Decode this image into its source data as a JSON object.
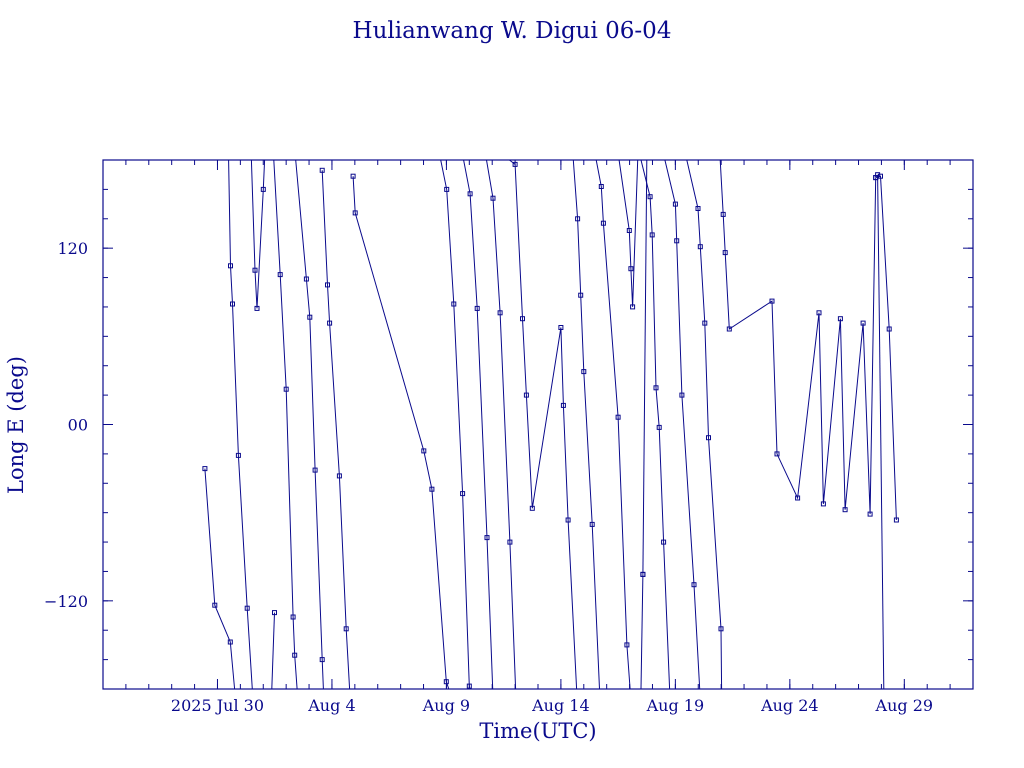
{
  "chart_data": {
    "type": "line",
    "title": "Hulianwang W. Digui 06-04",
    "xlabel": "Time(UTC)",
    "ylabel": "Long E (deg)",
    "ylim": [
      -180,
      180
    ],
    "xlim": [
      "2025-07-25T00:00",
      "2025-09-01T00:00"
    ],
    "grid": false,
    "legend": "none",
    "color": "#0a0a8c",
    "xticks": [
      {
        "label": "2025 Jul 30",
        "at": "2025-07-30"
      },
      {
        "label": "Aug  4",
        "at": "2025-08-04"
      },
      {
        "label": "Aug  9",
        "at": "2025-08-09"
      },
      {
        "label": "Aug 14",
        "at": "2025-08-14"
      },
      {
        "label": "Aug 19",
        "at": "2025-08-19"
      },
      {
        "label": "Aug 24",
        "at": "2025-08-24"
      },
      {
        "label": "Aug 29",
        "at": "2025-08-29"
      }
    ],
    "yticks": [
      {
        "label": "−120",
        "value": -120
      },
      {
        "label": "00",
        "value": 0
      },
      {
        "label": "120",
        "value": 120
      }
    ],
    "series": [
      {
        "points": [
          [
            "2025-07-29T10:51",
            -30
          ],
          [
            "2025-07-29T21:12",
            -123
          ],
          [
            "2025-07-30T13:25",
            -148
          ],
          [
            "2025-07-30T18:00",
            -180
          ]
        ]
      },
      {
        "points": [
          [
            "2025-07-30T11:42",
            180
          ],
          [
            "2025-07-30T13:42",
            108
          ],
          [
            "2025-07-30T15:43",
            82
          ],
          [
            "2025-07-30T21:54",
            -21
          ],
          [
            "2025-07-31T07:08",
            -125
          ],
          [
            "2025-07-31T12:30",
            -180
          ]
        ]
      },
      {
        "points": [
          [
            "2025-07-31T11:31",
            180
          ],
          [
            "2025-07-31T15:23",
            105
          ],
          [
            "2025-07-31T17:24",
            79
          ],
          [
            "2025-08-01T00:00",
            160
          ],
          [
            "2025-08-01T01:24",
            180
          ]
        ]
      },
      {
        "points": [
          [
            "2025-08-01T11:44",
            -128
          ],
          [
            "2025-08-01T09:00",
            -180
          ]
        ]
      },
      {
        "points": [
          [
            "2025-08-01T11:00",
            180
          ],
          [
            "2025-08-01T17:48",
            102
          ],
          [
            "2025-08-02T00:00",
            24
          ],
          [
            "2025-08-02T07:15",
            -131
          ],
          [
            "2025-08-02T08:59",
            -157
          ],
          [
            "2025-08-02T11:30",
            -180
          ]
        ]
      },
      {
        "points": [
          [
            "2025-08-02T10:00",
            180
          ],
          [
            "2025-08-02T21:12",
            99
          ],
          [
            "2025-08-03T00:48",
            73
          ],
          [
            "2025-08-03T06:20",
            -31
          ],
          [
            "2025-08-03T13:49",
            -160
          ],
          [
            "2025-08-03T15:00",
            -180
          ]
        ]
      },
      {
        "points": [
          [
            "2025-08-03T13:49",
            173
          ],
          [
            "2025-08-03T19:22",
            95
          ],
          [
            "2025-08-03T21:33",
            69
          ],
          [
            "2025-08-04T07:51",
            -35
          ],
          [
            "2025-08-04T14:54",
            -139
          ],
          [
            "2025-08-04T18:30",
            -180
          ]
        ]
      },
      {
        "points": [
          [
            "2025-08-04T22:09",
            169
          ],
          [
            "2025-08-05T00:20",
            144
          ],
          [
            "2025-08-08T00:18",
            -18
          ],
          [
            "2025-08-08T08:49",
            -44
          ],
          [
            "2025-08-08T23:50",
            -175
          ],
          [
            "2025-08-09T02:30",
            -180
          ]
        ]
      },
      {
        "points": [
          [
            "2025-08-08T18:00",
            180
          ],
          [
            "2025-08-09T00:18",
            160
          ],
          [
            "2025-08-09T07:46",
            82
          ],
          [
            "2025-08-09T17:00",
            -47
          ],
          [
            "2025-08-10T00:00",
            -178
          ],
          [
            "2025-08-10T00:20",
            -180
          ]
        ]
      },
      {
        "points": [
          [
            "2025-08-09T18:00",
            180
          ],
          [
            "2025-08-10T00:48",
            157
          ],
          [
            "2025-08-10T08:16",
            79
          ],
          [
            "2025-08-10T18:30",
            -77
          ],
          [
            "2025-08-11T00:30",
            -180
          ]
        ]
      },
      {
        "points": [
          [
            "2025-08-10T18:00",
            180
          ],
          [
            "2025-08-11T00:48",
            154
          ],
          [
            "2025-08-11T08:16",
            76
          ],
          [
            "2025-08-11T18:30",
            -80
          ],
          [
            "2025-08-12T00:30",
            -180
          ]
        ]
      },
      {
        "points": [
          [
            "2025-08-11T18:00",
            180
          ],
          [
            "2025-08-12T00:00",
            177
          ],
          [
            "2025-08-12T07:46",
            72
          ],
          [
            "2025-08-12T11:51",
            20
          ],
          [
            "2025-08-12T18:00",
            -57
          ],
          [
            "2025-08-14T00:00",
            66
          ],
          [
            "2025-08-14T02:37",
            13
          ],
          [
            "2025-08-14T07:31",
            -65
          ],
          [
            "2025-08-14T16:30",
            -180
          ]
        ]
      },
      {
        "points": [
          [
            "2025-08-14T13:00",
            180
          ],
          [
            "2025-08-14T17:32",
            140
          ],
          [
            "2025-08-14T20:44",
            88
          ],
          [
            "2025-08-15T00:00",
            36
          ],
          [
            "2025-08-15T08:49",
            -68
          ],
          [
            "2025-08-15T16:30",
            -180
          ]
        ]
      },
      {
        "points": [
          [
            "2025-08-15T13:00",
            180
          ],
          [
            "2025-08-15T18:22",
            162
          ],
          [
            "2025-08-15T20:33",
            137
          ],
          [
            "2025-08-16T12:00",
            5
          ],
          [
            "2025-08-16T21:12",
            -150
          ],
          [
            "2025-08-17T00:30",
            -180
          ]
        ]
      },
      {
        "points": [
          [
            "2025-08-16T13:00",
            180
          ],
          [
            "2025-08-16T23:45",
            132
          ],
          [
            "2025-08-17T01:24",
            106
          ],
          [
            "2025-08-17T03:07",
            80
          ],
          [
            "2025-08-17T08:30",
            180
          ]
        ]
      },
      {
        "points": [
          [
            "2025-08-17T14:00",
            -102
          ],
          [
            "2025-08-17T12:00",
            -180
          ]
        ]
      },
      {
        "points": [
          [
            "2025-08-17T14:00",
            -102
          ],
          [
            "2025-08-17T18:00",
            180
          ]
        ]
      },
      {
        "points": [
          [
            "2025-08-17T12:00",
            180
          ],
          [
            "2025-08-17T21:33",
            155
          ],
          [
            "2025-08-17T23:45",
            129
          ],
          [
            "2025-08-18T03:39",
            25
          ],
          [
            "2025-08-18T07:00",
            -2
          ],
          [
            "2025-08-18T11:42",
            -80
          ],
          [
            "2025-08-18T18:00",
            -180
          ]
        ]
      },
      {
        "points": [
          [
            "2025-08-18T13:00",
            180
          ],
          [
            "2025-08-19T00:00",
            150
          ],
          [
            "2025-08-19T01:24",
            125
          ],
          [
            "2025-08-19T06:51",
            20
          ],
          [
            "2025-08-19T19:33",
            -109
          ],
          [
            "2025-08-20T01:30",
            -180
          ]
        ]
      },
      {
        "points": [
          [
            "2025-08-19T12:00",
            180
          ],
          [
            "2025-08-19T23:45",
            147
          ],
          [
            "2025-08-20T02:06",
            121
          ],
          [
            "2025-08-20T06:51",
            69
          ],
          [
            "2025-08-20T10:43",
            -9
          ],
          [
            "2025-08-20T23:47",
            -139
          ],
          [
            "2025-08-21T00:30",
            -180
          ]
        ]
      },
      {
        "points": [
          [
            "2025-08-20T23:00",
            180
          ],
          [
            "2025-08-21T02:06",
            143
          ],
          [
            "2025-08-21T04:17",
            117
          ],
          [
            "2025-08-21T08:30",
            65
          ],
          [
            "2025-08-23T05:20",
            84
          ],
          [
            "2025-08-23T10:32",
            -20
          ],
          [
            "2025-08-24T08:07",
            -50
          ],
          [
            "2025-08-25T06:31",
            76
          ],
          [
            "2025-08-25T11:13",
            -54
          ],
          [
            "2025-08-26T05:00",
            72
          ],
          [
            "2025-08-26T09:53",
            -58
          ],
          [
            "2025-08-27T04:50",
            69
          ],
          [
            "2025-08-27T12:06",
            -61
          ],
          [
            "2025-08-27T18:00",
            168
          ]
        ]
      },
      {
        "points": [
          [
            "2025-08-27T18:00",
            168
          ],
          [
            "2025-08-27T23:04",
            169
          ],
          [
            "2025-08-28T08:07",
            65
          ],
          [
            "2025-08-28T15:43",
            -65
          ]
        ]
      },
      {
        "points": [
          [
            "2025-08-28T02:30",
            -180
          ],
          [
            "2025-08-27T20:00",
            170
          ]
        ]
      }
    ]
  }
}
